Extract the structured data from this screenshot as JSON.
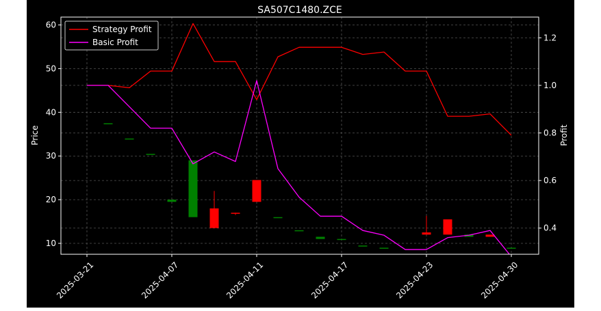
{
  "chart_data": {
    "type": "candlestick+line",
    "title": "SA507C1480.ZCE",
    "ylabel_left": "Price",
    "ylabel_right": "Profit",
    "xlabel": "",
    "ylim_left": [
      7.5,
      61.8
    ],
    "ylim_right": [
      0.29,
      1.287
    ],
    "left_ticks": [
      10,
      20,
      30,
      40,
      50,
      60
    ],
    "right_ticks": [
      0.4,
      0.6,
      0.8,
      1.0,
      1.2
    ],
    "x_tick_labels": [
      {
        "label": "2025-03-21",
        "index": 0
      },
      {
        "label": "2025-04-07",
        "index": 4
      },
      {
        "label": "2025-04-11",
        "index": 8
      },
      {
        "label": "2025-04-17",
        "index": 12
      },
      {
        "label": "2025-04-23",
        "index": 16
      },
      {
        "label": "2025-04-30",
        "index": 20
      }
    ],
    "grid": true,
    "legend_position": "upper-left",
    "colors": {
      "background": "#000000",
      "text": "#ffffff",
      "grid": "#555555",
      "strategy": "#ff0000",
      "basic": "#ff00ff",
      "up": "#008000",
      "down": "#ff0000"
    },
    "candles": [
      {
        "index": 1,
        "open": 37.5,
        "close": 37.5,
        "high": 37.5,
        "low": 37.5
      },
      {
        "index": 2,
        "open": 34.0,
        "close": 34.0,
        "high": 34.0,
        "low": 34.0
      },
      {
        "index": 3,
        "open": 30.5,
        "close": 30.5,
        "high": 30.5,
        "low": 30.5
      },
      {
        "index": 4,
        "open": 19.5,
        "close": 20.0,
        "high": 20.0,
        "low": 19.5
      },
      {
        "index": 5,
        "open": 16.0,
        "close": 29.0,
        "high": 29.0,
        "low": 16.0
      },
      {
        "index": 6,
        "open": 18.0,
        "close": 13.5,
        "high": 22.0,
        "low": 13.5
      },
      {
        "index": 7,
        "open": 17.0,
        "close": 16.8,
        "high": 17.0,
        "low": 16.5
      },
      {
        "index": 8,
        "open": 24.5,
        "close": 19.5,
        "high": 24.5,
        "low": 19.5
      },
      {
        "index": 9,
        "open": 16.0,
        "close": 16.0,
        "high": 16.0,
        "low": 16.0
      },
      {
        "index": 10,
        "open": 13.0,
        "close": 13.0,
        "high": 13.0,
        "low": 13.0
      },
      {
        "index": 11,
        "open": 11.0,
        "close": 11.5,
        "high": 11.5,
        "low": 11.0
      },
      {
        "index": 12,
        "open": 11.0,
        "close": 11.0,
        "high": 11.0,
        "low": 11.0
      },
      {
        "index": 13,
        "open": 9.5,
        "close": 9.5,
        "high": 9.5,
        "low": 9.5
      },
      {
        "index": 14,
        "open": 9.0,
        "close": 9.0,
        "high": 9.0,
        "low": 9.0
      },
      {
        "index": 16,
        "open": 12.5,
        "close": 12.0,
        "high": 16.3,
        "low": 12.0
      },
      {
        "index": 17,
        "open": 15.5,
        "close": 12.0,
        "high": 15.5,
        "low": 12.0
      },
      {
        "index": 18,
        "open": 11.5,
        "close": 12.0,
        "high": 12.0,
        "low": 11.5
      },
      {
        "index": 19,
        "open": 12.0,
        "close": 11.5,
        "high": 12.0,
        "low": 11.5
      },
      {
        "index": 20,
        "open": 9.0,
        "close": 9.0,
        "high": 9.0,
        "low": 9.0
      }
    ],
    "series": [
      {
        "name": "Strategy Profit",
        "color": "#ff0000",
        "points": [
          [
            0,
            1.0
          ],
          [
            1,
            1.0
          ],
          [
            2,
            0.99
          ],
          [
            3,
            1.06
          ],
          [
            4,
            1.06
          ],
          [
            5,
            1.26
          ],
          [
            6,
            1.1
          ],
          [
            7,
            1.1
          ],
          [
            8,
            0.94
          ],
          [
            9,
            1.12
          ],
          [
            10,
            1.16
          ],
          [
            11,
            1.16
          ],
          [
            12,
            1.16
          ],
          [
            13,
            1.13
          ],
          [
            14,
            1.14
          ],
          [
            15,
            1.06
          ],
          [
            16,
            1.06
          ],
          [
            17,
            0.87
          ],
          [
            18,
            0.87
          ],
          [
            19,
            0.88
          ],
          [
            20,
            0.79
          ]
        ]
      },
      {
        "name": "Basic Profit",
        "color": "#ff00ff",
        "points": [
          [
            0,
            1.0
          ],
          [
            1,
            1.0
          ],
          [
            2,
            0.91
          ],
          [
            3,
            0.82
          ],
          [
            4,
            0.82
          ],
          [
            5,
            0.67
          ],
          [
            6,
            0.72
          ],
          [
            7,
            0.68
          ],
          [
            8,
            1.02
          ],
          [
            9,
            0.65
          ],
          [
            10,
            0.53
          ],
          [
            11,
            0.45
          ],
          [
            12,
            0.45
          ],
          [
            13,
            0.39
          ],
          [
            14,
            0.37
          ],
          [
            15,
            0.31
          ],
          [
            16,
            0.31
          ],
          [
            17,
            0.36
          ],
          [
            18,
            0.37
          ],
          [
            19,
            0.39
          ],
          [
            20,
            0.28
          ]
        ]
      }
    ]
  }
}
